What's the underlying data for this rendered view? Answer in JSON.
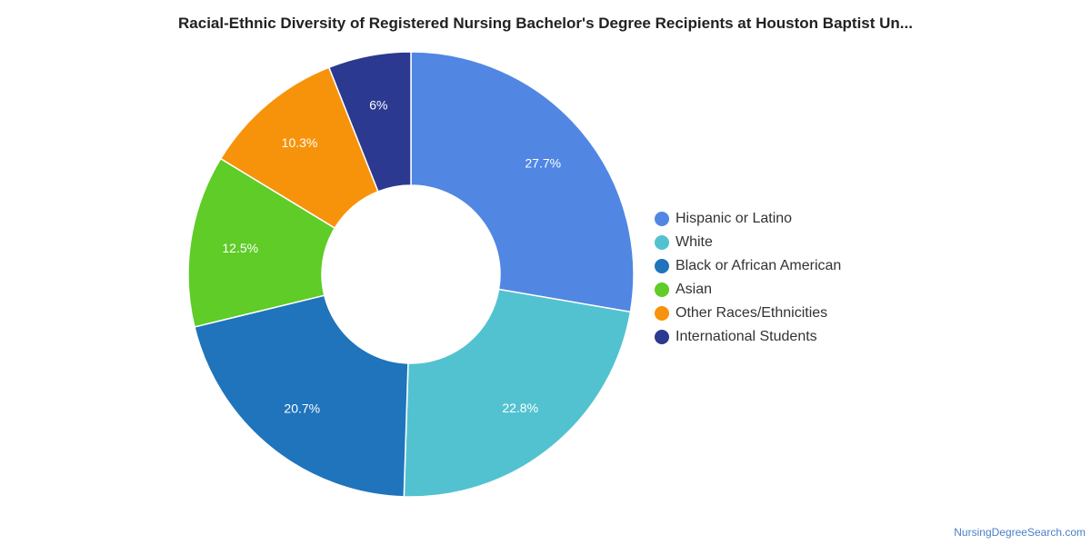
{
  "chart_data": {
    "type": "pie",
    "variant": "donut",
    "title": "Racial-Ethnic Diversity of Registered Nursing Bachelor's Degree Recipients at Houston Baptist Un...",
    "legend_position": "right",
    "categories": [
      "Hispanic or Latino",
      "White",
      "Black or African American",
      "Asian",
      "Other Races/Ethnicities",
      "International Students"
    ],
    "values": [
      27.7,
      22.8,
      20.7,
      12.5,
      10.3,
      6
    ],
    "labels": [
      "27.7%",
      "22.8%",
      "20.7%",
      "12.5%",
      "10.3%",
      "6%"
    ],
    "colors": [
      "#5186e3",
      "#52c2d0",
      "#1f74bc",
      "#5fcc27",
      "#f7930b",
      "#2b3990"
    ]
  },
  "footer": {
    "source": "NursingDegreeSearch.com"
  }
}
